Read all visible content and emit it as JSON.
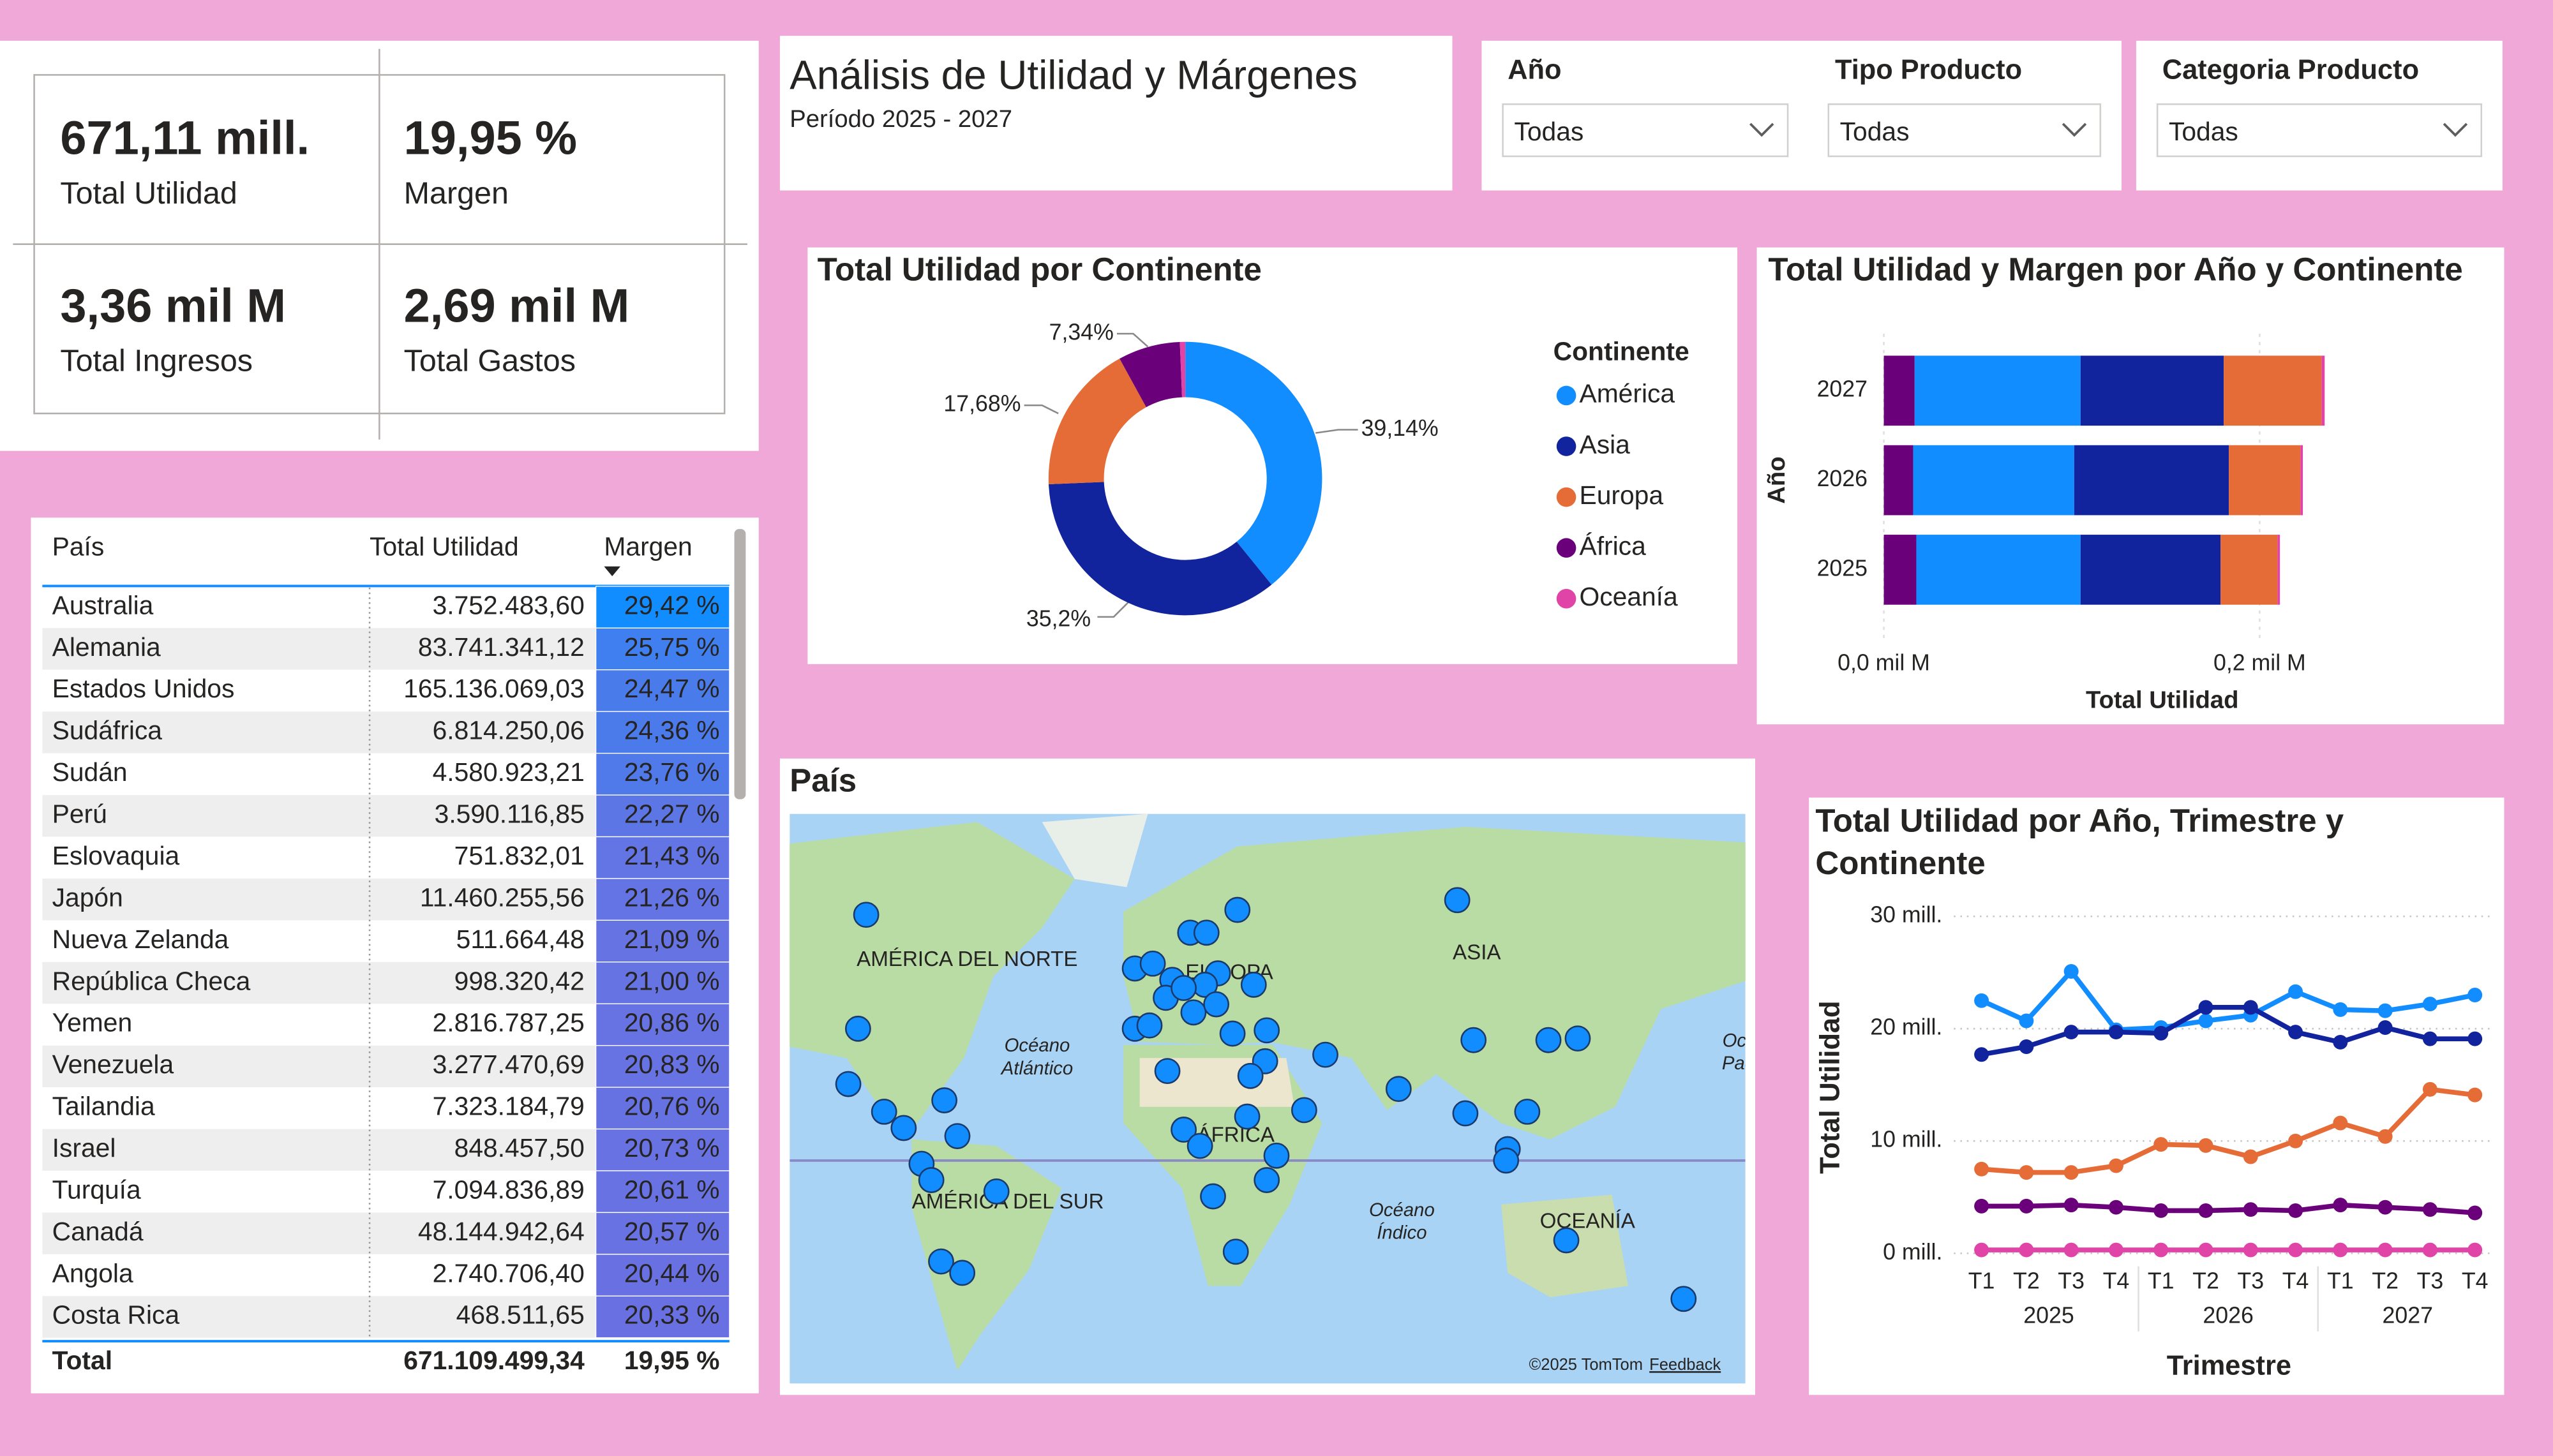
{
  "kpis": [
    {
      "value": "671,11 mill.",
      "label": "Total Utilidad"
    },
    {
      "value": "19,95 %",
      "label": "Margen"
    },
    {
      "value": "3,36 mil M",
      "label": "Total Ingresos"
    },
    {
      "value": "2,69 mil M",
      "label": "Total Gastos"
    }
  ],
  "header": {
    "title": "Análisis de Utilidad y Márgenes",
    "subtitle": "Período 2025 - 2027"
  },
  "slicers": [
    {
      "label": "Año",
      "value": "Todas"
    },
    {
      "label": "Tipo Producto",
      "value": "Todas"
    },
    {
      "label": "Categoria Producto",
      "value": "Todas"
    }
  ],
  "table": {
    "columns": [
      "País",
      "Total Utilidad",
      "Margen"
    ],
    "rows": [
      [
        "Australia",
        "3.752.483,60",
        "29,42 %"
      ],
      [
        "Alemania",
        "83.741.341,12",
        "25,75 %"
      ],
      [
        "Estados Unidos",
        "165.136.069,03",
        "24,47 %"
      ],
      [
        "Sudáfrica",
        "6.814.250,06",
        "24,36 %"
      ],
      [
        "Sudán",
        "4.580.923,21",
        "23,76 %"
      ],
      [
        "Perú",
        "3.590.116,85",
        "22,27 %"
      ],
      [
        "Eslovaquia",
        "751.832,01",
        "21,43 %"
      ],
      [
        "Japón",
        "11.460.255,56",
        "21,26 %"
      ],
      [
        "Nueva Zelanda",
        "511.664,48",
        "21,09 %"
      ],
      [
        "República Checa",
        "998.320,42",
        "21,00 %"
      ],
      [
        "Yemen",
        "2.816.787,25",
        "20,86 %"
      ],
      [
        "Venezuela",
        "3.277.470,69",
        "20,83 %"
      ],
      [
        "Tailandia",
        "7.323.184,79",
        "20,76 %"
      ],
      [
        "Israel",
        "848.457,50",
        "20,73 %"
      ],
      [
        "Turquía",
        "7.094.836,89",
        "20,61 %"
      ],
      [
        "Canadá",
        "48.144.942,64",
        "20,57 %"
      ],
      [
        "Angola",
        "2.740.706,40",
        "20,44 %"
      ],
      [
        "Costa Rica",
        "468.511,65",
        "20,33 %"
      ]
    ],
    "total": [
      "Total",
      "671.109.499,34",
      "19,95 %"
    ],
    "margin_colors": [
      "#118DFF",
      "#3F7FEF",
      "#4A7BEB",
      "#4B7BEB",
      "#5079EA",
      "#5D76E6",
      "#6374E4",
      "#6474E4",
      "#6573E3",
      "#6673E3",
      "#6772E3",
      "#6772E3",
      "#6772E2",
      "#6872E2",
      "#6872E2",
      "#6872E2",
      "#6971E2",
      "#6971E2"
    ]
  },
  "map": {
    "title": "País",
    "labels": [
      "AMÉRICA DEL NORTE",
      "EUROPA",
      "ASIA",
      "ÁFRICA",
      "AMÉRICA DEL SUR",
      "OCEANÍA"
    ],
    "ocean_labels": [
      [
        "Océano",
        "Atlántico"
      ],
      [
        "Océano",
        "Índico"
      ],
      [
        "Océano",
        "Pacífico"
      ]
    ],
    "attribution": "©2025 TomTom",
    "feedback": "Feedback"
  },
  "chart_data": [
    {
      "type": "pie",
      "title": "Total Utilidad por Continente",
      "legend_title": "Continente",
      "categories": [
        "América",
        "Asia",
        "Europa",
        "África",
        "Oceanía"
      ],
      "values": [
        39.14,
        35.2,
        17.68,
        7.34,
        0.64
      ],
      "value_labels": [
        "39,14%",
        "35,2%",
        "17,68%",
        "7,34%",
        null
      ],
      "colors": [
        "#118DFF",
        "#12239E",
        "#E66C37",
        "#6B007B",
        "#E044A7"
      ]
    },
    {
      "type": "bar",
      "orientation": "horizontal",
      "stacked": true,
      "title": "Total Utilidad y Margen por Año y Continente",
      "x_label": "Total Utilidad",
      "y_label": "Año",
      "categories": [
        "2027",
        "2026",
        "2025"
      ],
      "series": [
        {
          "color": "#6B007B",
          "values": [
            0.0164,
            0.0156,
            0.0173
          ]
        },
        {
          "color": "#118DFF",
          "values": [
            0.0883,
            0.0857,
            0.0874
          ]
        },
        {
          "color": "#12239E",
          "values": [
            0.0762,
            0.0823,
            0.0745
          ]
        },
        {
          "color": "#E66C37",
          "values": [
            0.052,
            0.0381,
            0.0303
          ]
        },
        {
          "color": "#E044A7",
          "values": [
            0.0017,
            0.0013,
            0.0013
          ]
        }
      ],
      "xlim": [
        0,
        0.24
      ],
      "xticks": [
        {
          "value": 0,
          "label": "0,0 mil M"
        },
        {
          "value": 0.2,
          "label": "0,2 mil M"
        }
      ],
      "grid": true
    },
    {
      "type": "line",
      "title": "Total Utilidad por Año, Trimestre y Continente",
      "x_label": "Trimestre",
      "y_label": "Total Utilidad",
      "categories": [
        "T1",
        "T2",
        "T3",
        "T4",
        "T1",
        "T2",
        "T3",
        "T4",
        "T1",
        "T2",
        "T3",
        "T4"
      ],
      "x_groups": [
        "2025",
        "2026",
        "2027"
      ],
      "series": [
        {
          "color": "#118DFF",
          "values": [
            22.5,
            20.7,
            25.1,
            19.9,
            20.1,
            20.7,
            21.2,
            23.3,
            21.7,
            21.6,
            22.2,
            23.0
          ]
        },
        {
          "color": "#12239E",
          "values": [
            17.7,
            18.4,
            19.7,
            19.7,
            19.6,
            21.9,
            21.9,
            19.7,
            18.8,
            20.1,
            19.1,
            19.1
          ]
        },
        {
          "color": "#E66C37",
          "values": [
            7.5,
            7.2,
            7.2,
            7.8,
            9.7,
            9.6,
            8.6,
            10.0,
            11.6,
            10.4,
            14.6,
            14.1
          ]
        },
        {
          "color": "#6B007B",
          "values": [
            4.2,
            4.2,
            4.3,
            4.1,
            3.8,
            3.8,
            3.9,
            3.8,
            4.3,
            4.1,
            3.9,
            3.6
          ]
        },
        {
          "color": "#E044A7",
          "values": [
            0.3,
            0.3,
            0.3,
            0.3,
            0.3,
            0.3,
            0.3,
            0.3,
            0.3,
            0.3,
            0.3,
            0.3
          ]
        }
      ],
      "ylim": [
        0,
        30
      ],
      "yticks": [
        {
          "value": 0,
          "label": "0 mill."
        },
        {
          "value": 10,
          "label": "10 mill."
        },
        {
          "value": 20,
          "label": "20 mill."
        },
        {
          "value": 30,
          "label": "30 mill."
        }
      ],
      "grid": true
    }
  ]
}
